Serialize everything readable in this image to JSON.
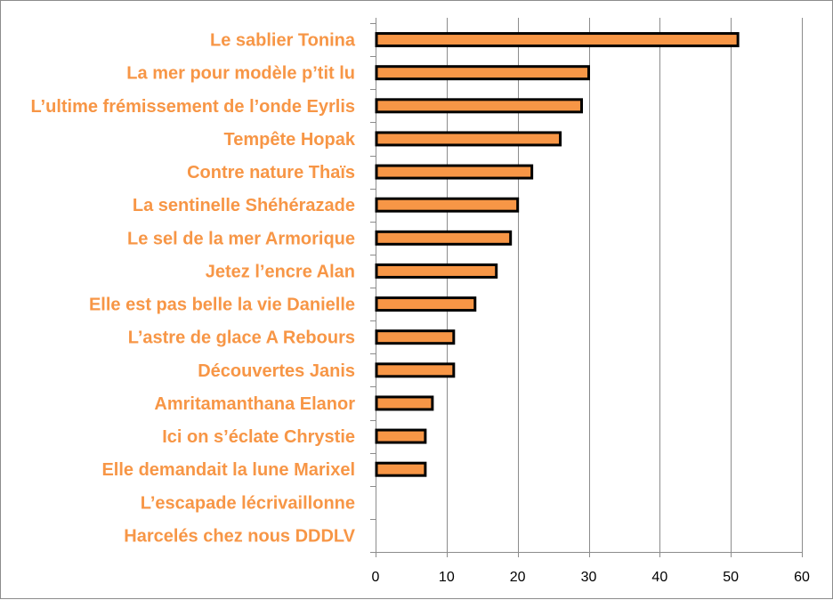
{
  "chart_data": {
    "type": "bar",
    "orientation": "horizontal",
    "title": "",
    "xlabel": "",
    "ylabel": "",
    "categories": [
      "Le sablier Tonina",
      "La mer pour modèle p’tit lu",
      "L’ultime frémissement de l’onde Eyrlis",
      "Tempête Hopak",
      "Contre nature Thaïs",
      "La sentinelle Shéhérazade",
      "Le sel de la mer Armorique",
      "Jetez l’encre Alan",
      "Elle est pas belle la vie Danielle",
      "L’astre de glace A Rebours",
      "Découvertes Janis",
      "Amritamanthana Elanor",
      "Ici on s’éclate Chrystie",
      "Elle demandait la lune Marixel",
      "L’escapade  lécrivaillonne",
      "Harcelés chez nous DDDLV"
    ],
    "values": [
      51,
      30,
      29,
      26,
      22,
      20,
      19,
      17,
      14,
      11,
      11,
      8,
      7,
      7,
      0,
      0
    ],
    "xlim": [
      0,
      60
    ],
    "xticks": [
      0,
      10,
      20,
      30,
      40,
      50,
      60
    ],
    "grid": true,
    "legend": "none"
  },
  "colors": {
    "bar_fill": "#F79646",
    "bar_stroke": "#000000",
    "label_color": "#F79646",
    "grid_color": "#8c8c8c"
  }
}
